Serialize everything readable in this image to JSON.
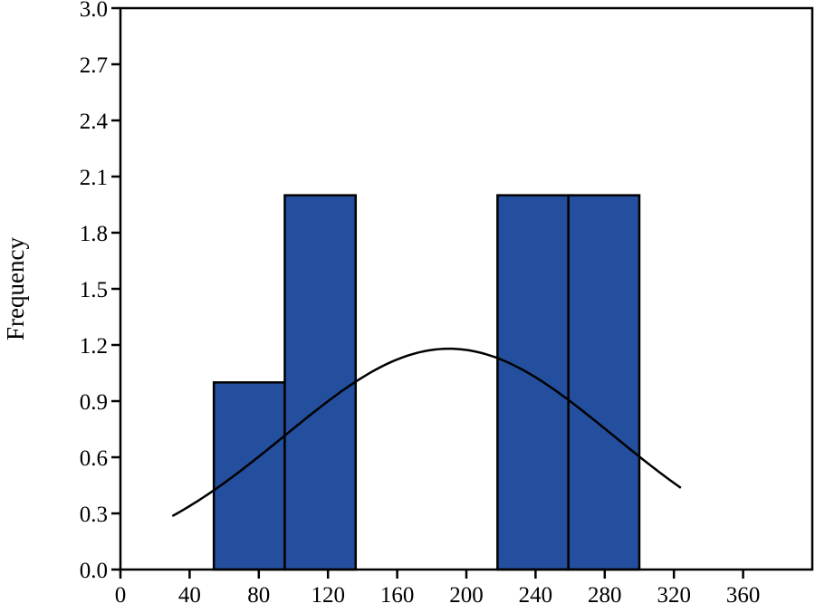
{
  "chart_data": {
    "type": "bar",
    "subtype": "histogram",
    "title": "",
    "xlabel": "",
    "ylabel": "Frequency",
    "xlim": [
      0,
      400
    ],
    "ylim": [
      0,
      3.0
    ],
    "x_ticks": [
      "0",
      "40",
      "80",
      "120",
      "160",
      "200",
      "240",
      "280",
      "320",
      "360"
    ],
    "y_ticks": [
      "0.0",
      "0.3",
      "0.6",
      "0.9",
      "1.2",
      "1.5",
      "1.8",
      "2.1",
      "2.4",
      "2.7",
      "3.0"
    ],
    "bins": [
      {
        "x0": 54,
        "x1": 95,
        "value": 1
      },
      {
        "x0": 95,
        "x1": 136,
        "value": 2
      },
      {
        "x0": 218,
        "x1": 259,
        "value": 2
      },
      {
        "x0": 259,
        "x1": 300,
        "value": 2
      }
    ],
    "bar_color": "#234F9E",
    "normal_curve": {
      "mean": 190,
      "sd": 95,
      "peak": 1.18,
      "x_start": 30,
      "x_end": 324
    },
    "grid": false,
    "legend": "none"
  }
}
